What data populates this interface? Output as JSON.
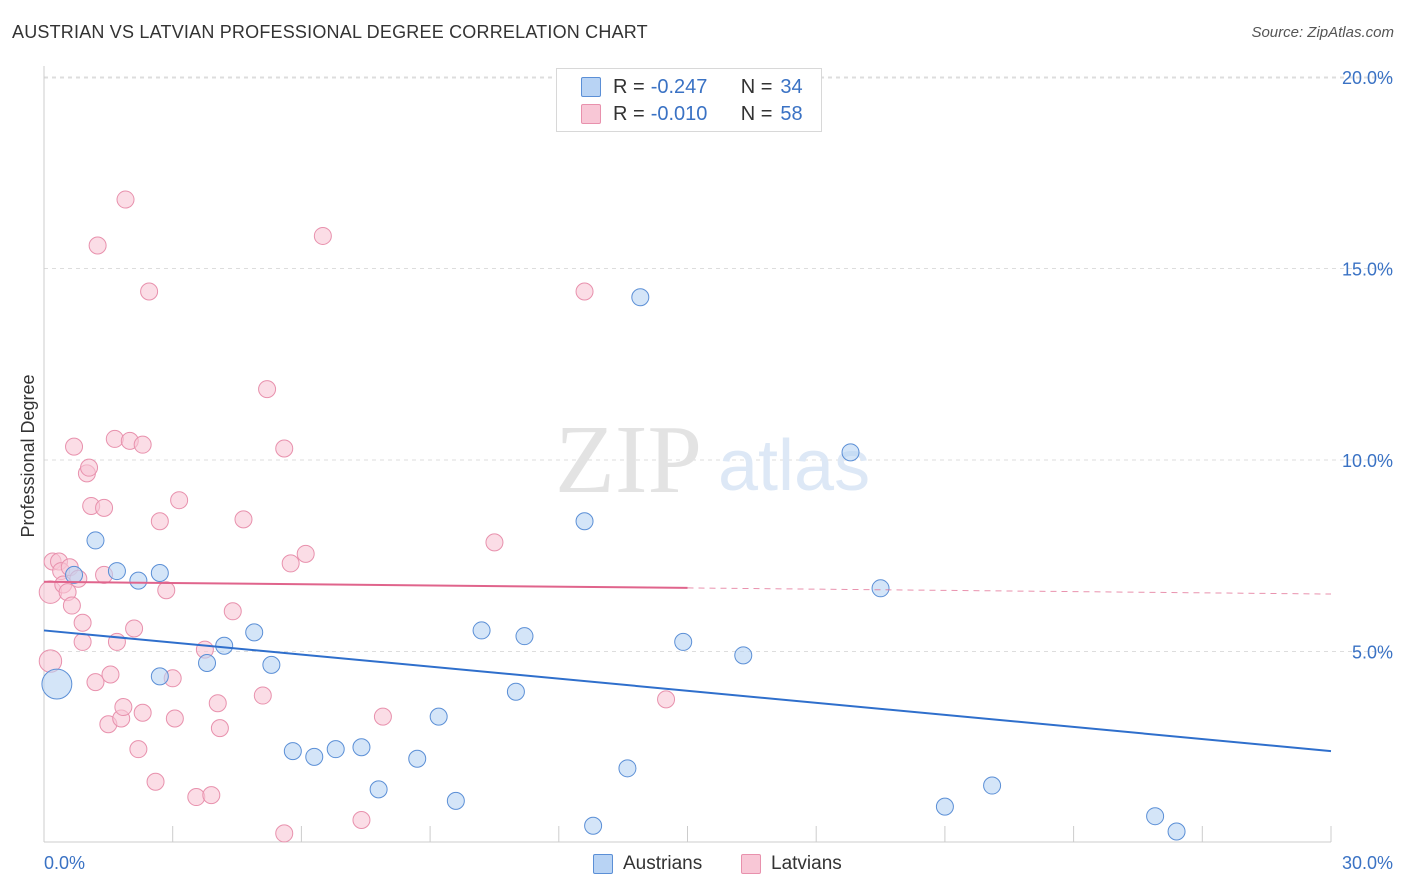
{
  "title": "AUSTRIAN VS LATVIAN PROFESSIONAL DEGREE CORRELATION CHART",
  "source": "Source: ZipAtlas.com",
  "watermark": {
    "zip": "ZIP",
    "atlas": "atlas"
  },
  "colors": {
    "austrians_fill": "#b8d3f4",
    "austrians_stroke": "#5b8fd6",
    "austrians_line": "#2f6fcc",
    "latvians_fill": "#f8c7d6",
    "latvians_stroke": "#e891ad",
    "latvians_line": "#e0648c",
    "tick_text": "#3a72c4",
    "grid": "#dddddd"
  },
  "legend": {
    "austrians": {
      "r_label": "R =",
      "r_value": "-0.247",
      "n_label": "N =",
      "n_value": "34"
    },
    "latvians": {
      "r_label": "R =",
      "r_value": "-0.010",
      "n_label": "N =",
      "n_value": "58"
    }
  },
  "bottom_legend": {
    "austrians": "Austrians",
    "latvians": "Latvians"
  },
  "chart_data": {
    "type": "scatter",
    "title": "AUSTRIAN VS LATVIAN PROFESSIONAL DEGREE CORRELATION CHART",
    "xlabel": "",
    "ylabel": "Professional Degree",
    "xlim": [
      0,
      30
    ],
    "ylim": [
      0,
      20.5
    ],
    "x_tick_labels": {
      "min": "0.0%",
      "max": "30.0%"
    },
    "y_ticks": [
      {
        "value": 5,
        "label": "5.0%"
      },
      {
        "value": 10,
        "label": "10.0%"
      },
      {
        "value": 15,
        "label": "15.0%"
      },
      {
        "value": 20,
        "label": "20.0%"
      }
    ],
    "x_tick_marks": [
      0,
      3,
      6,
      9,
      12,
      15,
      18,
      21,
      24,
      27,
      30
    ],
    "series": [
      {
        "name": "Austrians",
        "r": -0.247,
        "n": 34,
        "trend": {
          "x0": 0,
          "y0": 5.55,
          "x1": 30,
          "y1": 2.4,
          "solid_until": 30
        },
        "points": [
          [
            0.3,
            4.15,
            1.6
          ],
          [
            1.2,
            7.9,
            1
          ],
          [
            1.7,
            7.1,
            1
          ],
          [
            2.2,
            6.85,
            1
          ],
          [
            2.7,
            7.05,
            1
          ],
          [
            2.7,
            4.35,
            1
          ],
          [
            3.8,
            4.7,
            1
          ],
          [
            4.2,
            5.15,
            1
          ],
          [
            4.9,
            5.5,
            1
          ],
          [
            5.3,
            4.65,
            1
          ],
          [
            5.8,
            2.4,
            1
          ],
          [
            6.3,
            2.25,
            1
          ],
          [
            6.8,
            2.45,
            1
          ],
          [
            7.4,
            2.5,
            1
          ],
          [
            7.8,
            1.4,
            1
          ],
          [
            8.7,
            2.2,
            1
          ],
          [
            9.2,
            3.3,
            1
          ],
          [
            9.6,
            1.1,
            1
          ],
          [
            10.2,
            5.55,
            1
          ],
          [
            11.2,
            5.4,
            1
          ],
          [
            11.0,
            3.95,
            1
          ],
          [
            12.6,
            8.4,
            1
          ],
          [
            12.8,
            0.45,
            1
          ],
          [
            13.6,
            1.95,
            1
          ],
          [
            13.9,
            14.25,
            1
          ],
          [
            14.9,
            5.25,
            1
          ],
          [
            16.3,
            4.9,
            1
          ],
          [
            18.8,
            10.2,
            1
          ],
          [
            19.5,
            6.65,
            1
          ],
          [
            21.0,
            0.95,
            1
          ],
          [
            22.1,
            1.5,
            1
          ],
          [
            25.9,
            0.7,
            1
          ],
          [
            26.4,
            0.3,
            1
          ],
          [
            0.7,
            7.0,
            1
          ]
        ]
      },
      {
        "name": "Latvians",
        "r": -0.01,
        "n": 58,
        "trend": {
          "x0": 0,
          "y0": 6.82,
          "x1": 30,
          "y1": 6.5,
          "solid_until": 15
        },
        "points": [
          [
            0.15,
            4.75,
            1.2
          ],
          [
            0.15,
            6.55,
            1.2
          ],
          [
            0.2,
            7.35,
            1
          ],
          [
            0.35,
            7.35,
            1
          ],
          [
            0.4,
            7.1,
            1
          ],
          [
            0.45,
            6.75,
            1
          ],
          [
            0.55,
            6.55,
            1
          ],
          [
            0.6,
            7.2,
            1
          ],
          [
            0.65,
            6.2,
            1
          ],
          [
            0.7,
            10.35,
            1
          ],
          [
            0.8,
            6.9,
            1
          ],
          [
            0.9,
            5.25,
            1
          ],
          [
            0.9,
            5.75,
            1
          ],
          [
            1.0,
            9.65,
            1
          ],
          [
            1.05,
            9.8,
            1
          ],
          [
            1.1,
            8.8,
            1
          ],
          [
            1.2,
            4.2,
            1
          ],
          [
            1.25,
            15.6,
            1
          ],
          [
            1.4,
            8.75,
            1
          ],
          [
            1.4,
            7.0,
            1
          ],
          [
            1.5,
            3.1,
            1
          ],
          [
            1.55,
            4.4,
            1
          ],
          [
            1.65,
            10.55,
            1
          ],
          [
            1.7,
            5.25,
            1
          ],
          [
            1.8,
            3.25,
            1
          ],
          [
            1.85,
            3.55,
            1
          ],
          [
            1.9,
            16.8,
            1
          ],
          [
            2.0,
            10.5,
            1
          ],
          [
            2.1,
            5.6,
            1
          ],
          [
            2.2,
            2.45,
            1
          ],
          [
            2.3,
            10.4,
            1
          ],
          [
            2.3,
            3.4,
            1
          ],
          [
            2.45,
            14.4,
            1
          ],
          [
            2.6,
            1.6,
            1
          ],
          [
            2.7,
            8.4,
            1
          ],
          [
            2.85,
            6.6,
            1
          ],
          [
            3.0,
            4.3,
            1
          ],
          [
            3.05,
            3.25,
            1
          ],
          [
            3.15,
            8.95,
            1
          ],
          [
            3.55,
            1.2,
            1
          ],
          [
            3.75,
            5.05,
            1
          ],
          [
            3.9,
            1.25,
            1
          ],
          [
            4.05,
            3.65,
            1
          ],
          [
            4.1,
            3.0,
            1
          ],
          [
            4.4,
            6.05,
            1
          ],
          [
            4.65,
            8.45,
            1
          ],
          [
            5.1,
            3.85,
            1
          ],
          [
            5.2,
            11.85,
            1
          ],
          [
            5.6,
            10.3,
            1
          ],
          [
            5.6,
            0.25,
            1
          ],
          [
            5.75,
            7.3,
            1
          ],
          [
            6.1,
            7.55,
            1
          ],
          [
            6.5,
            15.85,
            1
          ],
          [
            7.4,
            0.6,
            1
          ],
          [
            7.9,
            3.3,
            1
          ],
          [
            10.5,
            7.85,
            1
          ],
          [
            12.6,
            14.4,
            1
          ],
          [
            14.5,
            3.75,
            1
          ]
        ]
      }
    ]
  }
}
